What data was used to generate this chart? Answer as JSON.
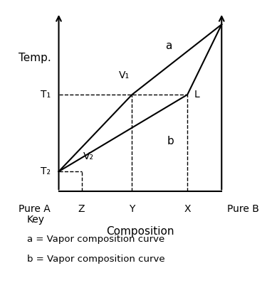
{
  "title": "",
  "ylabel": "Temp.",
  "xlabel": "Composition",
  "bg_color": "#ffffff",
  "text_color": "#000000",
  "curve_color": "#000000",
  "pure_a_label": "Pure A",
  "pure_b_label": "Pure B",
  "V1_label": "V₁",
  "V2_label": "V₂",
  "L_label": "L",
  "a_label": "a",
  "b_label": "b",
  "T1_label": "T₁",
  "T2_label": "T₂",
  "Z_label": "Z",
  "Y_label": "Y",
  "X_label": "X",
  "key_line1": "Key",
  "key_line2": "a = Vapor composition curve",
  "key_line3": "b = Vapor composition curve",
  "fig_width": 3.75,
  "fig_height": 3.98,
  "dpi": 100
}
